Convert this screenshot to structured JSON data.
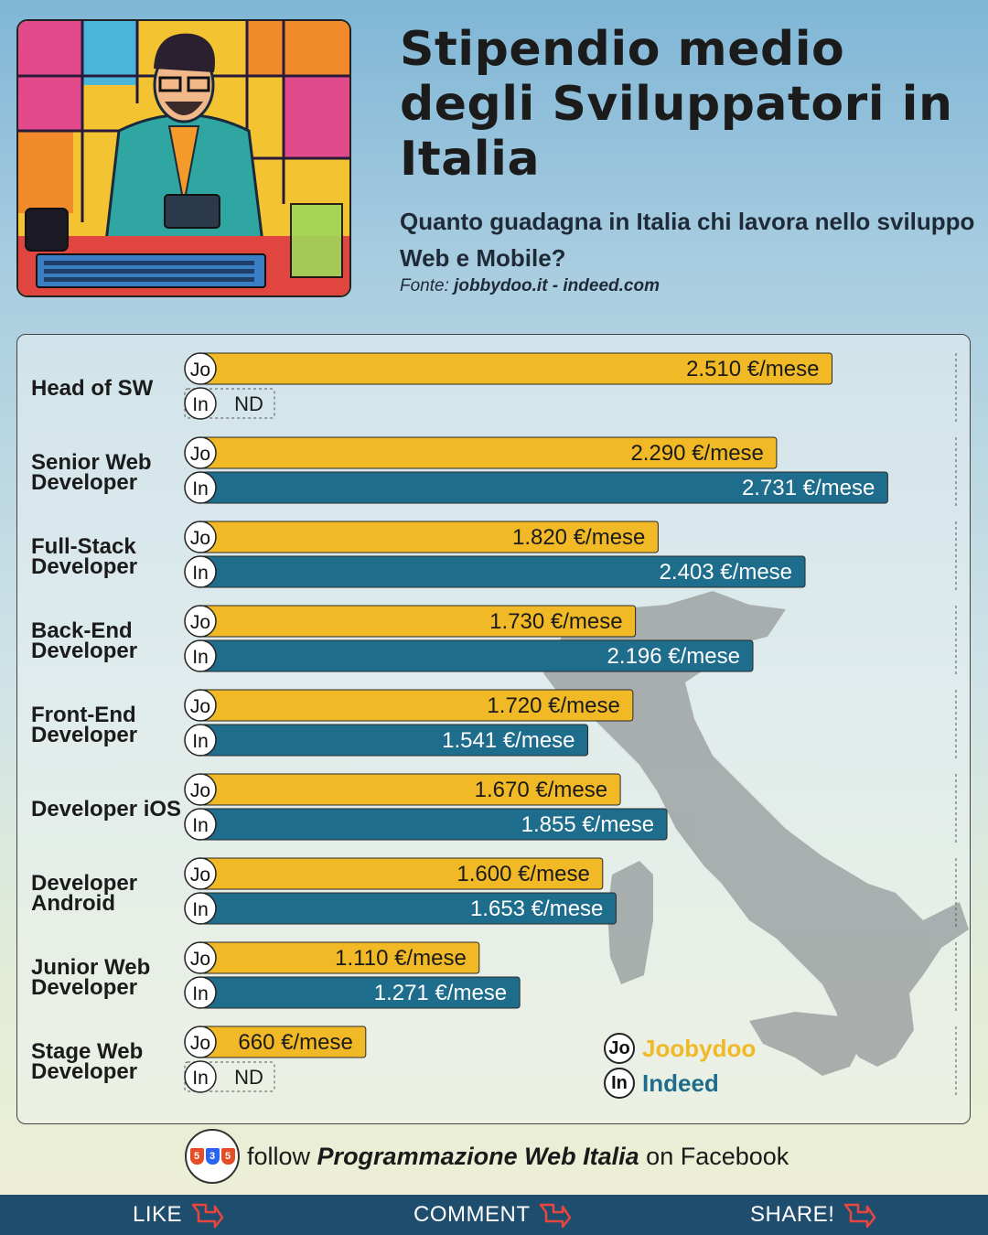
{
  "header": {
    "title": "Stipendio medio degli Sviluppatori in Italia",
    "subtitle": "Quanto guadagna in Italia chi lavora nello sviluppo Web e Mobile?",
    "source_prefix": "Fonte:",
    "source_text": "jobbydoo.it - indeed.com"
  },
  "colors": {
    "joobydoo": "#f0b925",
    "indeed": "#1e6d8c",
    "text_dark": "#1b1b1b",
    "bottom_bar": "#1f4d6e"
  },
  "badges": {
    "joobydoo": "Jo",
    "indeed": "In"
  },
  "nd_label": "ND",
  "unit_suffix": " €/mese",
  "chart_data": {
    "type": "bar",
    "orientation": "horizontal",
    "categories": [
      "Head of SW",
      "Senior Web Developer",
      "Full-Stack Developer",
      "Back-End Developer",
      "Front-End Developer",
      "Developer iOS",
      "Developer Android",
      "Junior Web Developer",
      "Stage Web Developer"
    ],
    "series": [
      {
        "name": "Joobydoo",
        "values": [
          2510,
          2290,
          1820,
          1730,
          1720,
          1670,
          1600,
          1110,
          660
        ]
      },
      {
        "name": "Indeed",
        "values": [
          null,
          2731,
          2403,
          2196,
          1541,
          1855,
          1653,
          1271,
          null
        ]
      }
    ],
    "value_labels": {
      "Joobydoo": [
        "2.510 €/mese",
        "2.290 €/mese",
        "1.820 €/mese",
        "1.730 €/mese",
        "1.720 €/mese",
        "1.670 €/mese",
        "1.600 €/mese",
        "1.110 €/mese",
        "660 €/mese"
      ],
      "Indeed": [
        "ND",
        "2.731 €/mese",
        "2.403 €/mese",
        "2.196 €/mese",
        "1.541 €/mese",
        "1.855 €/mese",
        "1.653 €/mese",
        "1.271 €/mese",
        "ND"
      ]
    },
    "xlim": [
      0,
      3000
    ],
    "legend_position": "bottom-right"
  },
  "legend": [
    {
      "badge": "Jo",
      "label": "Joobydoo"
    },
    {
      "badge": "In",
      "label": "Indeed"
    }
  ],
  "footer": {
    "follow_prefix": "follow",
    "page_name": "Programmazione Web Italia",
    "follow_suffix": "on Facebook",
    "logo_glyphs": [
      "5",
      "3",
      "5"
    ],
    "actions": [
      "LIKE",
      "COMMENT",
      "SHARE!"
    ]
  }
}
